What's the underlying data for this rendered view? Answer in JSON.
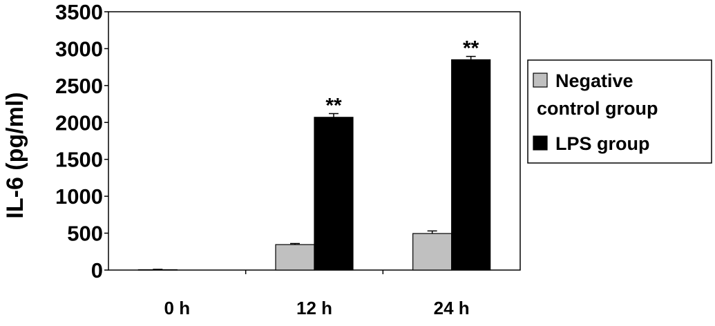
{
  "chart_data": {
    "type": "bar",
    "title": "",
    "xlabel": "",
    "ylabel": "IL-6 (pg/ml)",
    "categories": [
      "0 h",
      "12 h",
      "24 h"
    ],
    "ylim": [
      0,
      3500
    ],
    "yticks": [
      0,
      500,
      1000,
      1500,
      2000,
      2500,
      3000,
      3500
    ],
    "grid": false,
    "legend_position": "right",
    "series": [
      {
        "name": "Negative control group",
        "color": "#c0c0c0",
        "values": [
          5,
          345,
          495
        ],
        "errors": [
          5,
          15,
          35
        ]
      },
      {
        "name": "LPS group",
        "color": "#000000",
        "values": [
          0,
          2070,
          2850
        ],
        "errors": [
          0,
          50,
          45
        ]
      }
    ],
    "annotations": [
      {
        "category": "12 h",
        "series": "LPS group",
        "text": "**"
      },
      {
        "category": "24 h",
        "series": "LPS group",
        "text": "**"
      }
    ]
  }
}
